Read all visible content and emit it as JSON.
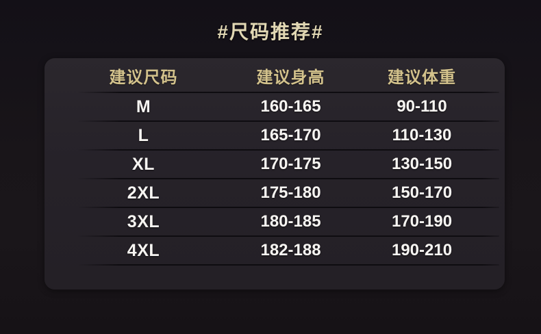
{
  "title": "#尺码推荐#",
  "colors": {
    "page_bg": "#17131a",
    "panel_bg": "#262229",
    "title_text": "#e2d8b4",
    "header_text": "#d3c28c",
    "value_text": "#f7f5f2",
    "divider": "#0a080c"
  },
  "table": {
    "headers": [
      "建议尺码",
      "建议身高",
      "建议体重"
    ],
    "rows": [
      [
        "M",
        "160-165",
        "90-110"
      ],
      [
        "L",
        "165-170",
        "110-130"
      ],
      [
        "XL",
        "170-175",
        "130-150"
      ],
      [
        "2XL",
        "175-180",
        "150-170"
      ],
      [
        "3XL",
        "180-185",
        "170-190"
      ],
      [
        "4XL",
        "182-188",
        "190-210"
      ]
    ]
  },
  "chart_data": {
    "type": "table",
    "title": "#尺码推荐#",
    "columns": [
      "建议尺码",
      "建议身高",
      "建议体重"
    ],
    "rows": [
      [
        "M",
        "160-165",
        "90-110"
      ],
      [
        "L",
        "165-170",
        "110-130"
      ],
      [
        "XL",
        "170-175",
        "130-150"
      ],
      [
        "2XL",
        "175-180",
        "150-170"
      ],
      [
        "3XL",
        "180-185",
        "170-190"
      ],
      [
        "4XL",
        "182-188",
        "190-210"
      ]
    ],
    "layout_hints": {
      "theme": "dark",
      "header_color": "#d3c28c",
      "value_color": "#f7f5f2",
      "row_dividers": true
    }
  }
}
